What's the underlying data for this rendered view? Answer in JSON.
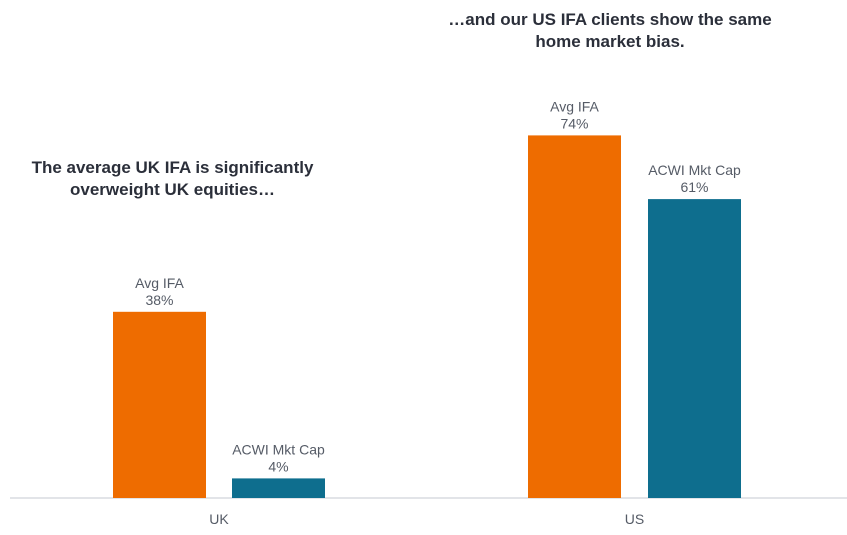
{
  "chart_data": {
    "type": "bar",
    "categories": [
      "UK",
      "US"
    ],
    "series": [
      {
        "name": "Avg IFA",
        "values": [
          38,
          74
        ],
        "color": "#EE6C00"
      },
      {
        "name": "ACWI Mkt Cap",
        "values": [
          4,
          61
        ],
        "color": "#0E6E8E"
      }
    ],
    "data_labels": [
      [
        "Avg IFA",
        "ACWI Mkt Cap"
      ],
      [
        "38%",
        "4%"
      ],
      [
        "74%",
        "61%"
      ]
    ],
    "annotations": [
      "The average UK IFA is significantly overweight UK equities…",
      "…and our US IFA clients show the same home market bias."
    ],
    "title": "",
    "xlabel": "",
    "ylabel": "",
    "ylim": [
      0,
      80
    ],
    "grid": false,
    "legend": "none"
  }
}
